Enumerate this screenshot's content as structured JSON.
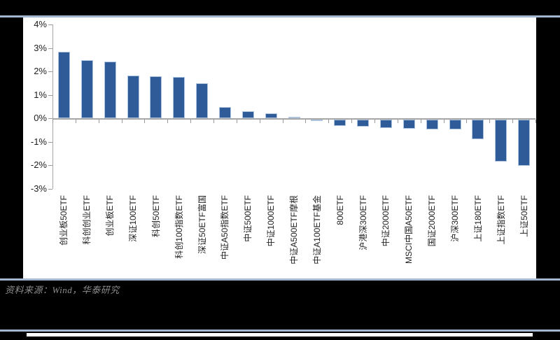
{
  "chart_data": {
    "type": "bar",
    "title": "",
    "categories": [
      "创业板50ETF",
      "科创创业ETF",
      "创业板ETF",
      "深证100ETF",
      "科创50ETF",
      "科创100指数ETF",
      "深证50ETF富国",
      "中证A50指数ETF",
      "中证500ETF",
      "中证1000ETF",
      "中证A500ETF摩根",
      "中证A100ETF基金",
      "800ETF",
      "沪港深300ETF",
      "中证2000ETF",
      "MSCI中国A50ETF",
      "国证2000ETF",
      "沪深300ETF",
      "上证180ETF",
      "上证指数ETF",
      "上证50ETF"
    ],
    "values": [
      2.85,
      2.48,
      2.42,
      1.83,
      1.78,
      1.76,
      1.48,
      0.47,
      0.31,
      0.21,
      0.03,
      -0.06,
      -0.26,
      -0.31,
      -0.36,
      -0.39,
      -0.41,
      -0.43,
      -0.85,
      -1.78,
      -1.97
    ],
    "unit": "%",
    "yticks": [
      "4%",
      "3%",
      "2%",
      "1%",
      "0%",
      "-1%",
      "-2%",
      "-3%"
    ],
    "ylim": [
      -3,
      4
    ],
    "grid": false,
    "legend_position": "none",
    "bar_color": "#2f5b99",
    "bar_edge_color": "#aec5e2"
  },
  "footer": {
    "source_note": "资料来源：Wind，华泰研究"
  },
  "colors": {
    "page_background": "#000000",
    "chart_background": "#ffffff",
    "rule": "#a3b8d0",
    "axis": "#a6a6a6",
    "source_text": "#8c8c8c"
  }
}
